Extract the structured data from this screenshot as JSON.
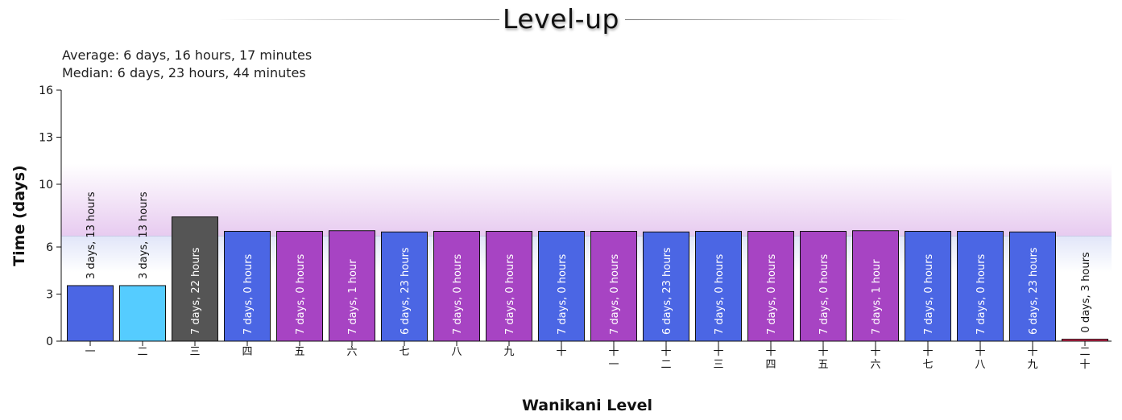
{
  "header": {
    "title": "Level-up",
    "average": "Average: 6 days, 16 hours, 17 minutes",
    "median": "Median: 6 days, 23 hours, 44 minutes"
  },
  "colors": {
    "blue": "#4b66e4",
    "light_blue": "#55ccff",
    "dark": "#555555",
    "purple": "#a744c3",
    "red": "#e3204d",
    "band_purple": "#e6c8ef",
    "band_blue": "#dfe4f8"
  },
  "chart_data": {
    "type": "bar",
    "xlabel": "Wanikani Level",
    "ylabel": "Time (days)",
    "ylim": [
      0,
      16
    ],
    "yticks": [
      0,
      3,
      6,
      10,
      13,
      16
    ],
    "grid": false,
    "reference_value": 6.7,
    "categories": [
      [
        "一"
      ],
      [
        "二"
      ],
      [
        "三"
      ],
      [
        "四"
      ],
      [
        "五"
      ],
      [
        "六"
      ],
      [
        "七"
      ],
      [
        "八"
      ],
      [
        "九"
      ],
      [
        "十"
      ],
      [
        "十",
        "一"
      ],
      [
        "十",
        "二"
      ],
      [
        "十",
        "三"
      ],
      [
        "十",
        "四"
      ],
      [
        "十",
        "五"
      ],
      [
        "十",
        "六"
      ],
      [
        "十",
        "七"
      ],
      [
        "十",
        "八"
      ],
      [
        "十",
        "九"
      ],
      [
        "二",
        "十"
      ]
    ],
    "values": [
      3.54,
      3.54,
      7.92,
      7.0,
      7.0,
      7.04,
      6.96,
      7.0,
      7.0,
      7.0,
      7.0,
      6.96,
      7.0,
      7.0,
      7.0,
      7.04,
      7.0,
      7.0,
      6.96,
      0.125
    ],
    "labels": [
      "3 days, 13 hours",
      "3 days, 13 hours",
      "7 days, 22 hours",
      "7 days, 0 hours",
      "7 days, 0 hours",
      "7 days, 1 hour",
      "6 days, 23 hours",
      "7 days, 0 hours",
      "7 days, 0 hours",
      "7 days, 0 hours",
      "7 days, 0 hours",
      "6 days, 23 hours",
      "7 days, 0 hours",
      "7 days, 0 hours",
      "7 days, 0 hours",
      "7 days, 1 hour",
      "7 days, 0 hours",
      "7 days, 0 hours",
      "6 days, 23 hours",
      "0 days, 3 hours"
    ],
    "bar_colors": [
      "#4b66e4",
      "#55ccff",
      "#555555",
      "#4b66e4",
      "#a744c3",
      "#a744c3",
      "#4b66e4",
      "#a744c3",
      "#a744c3",
      "#4b66e4",
      "#a744c3",
      "#4b66e4",
      "#4b66e4",
      "#a744c3",
      "#a744c3",
      "#a744c3",
      "#4b66e4",
      "#4b66e4",
      "#4b66e4",
      "#e3204d"
    ]
  }
}
